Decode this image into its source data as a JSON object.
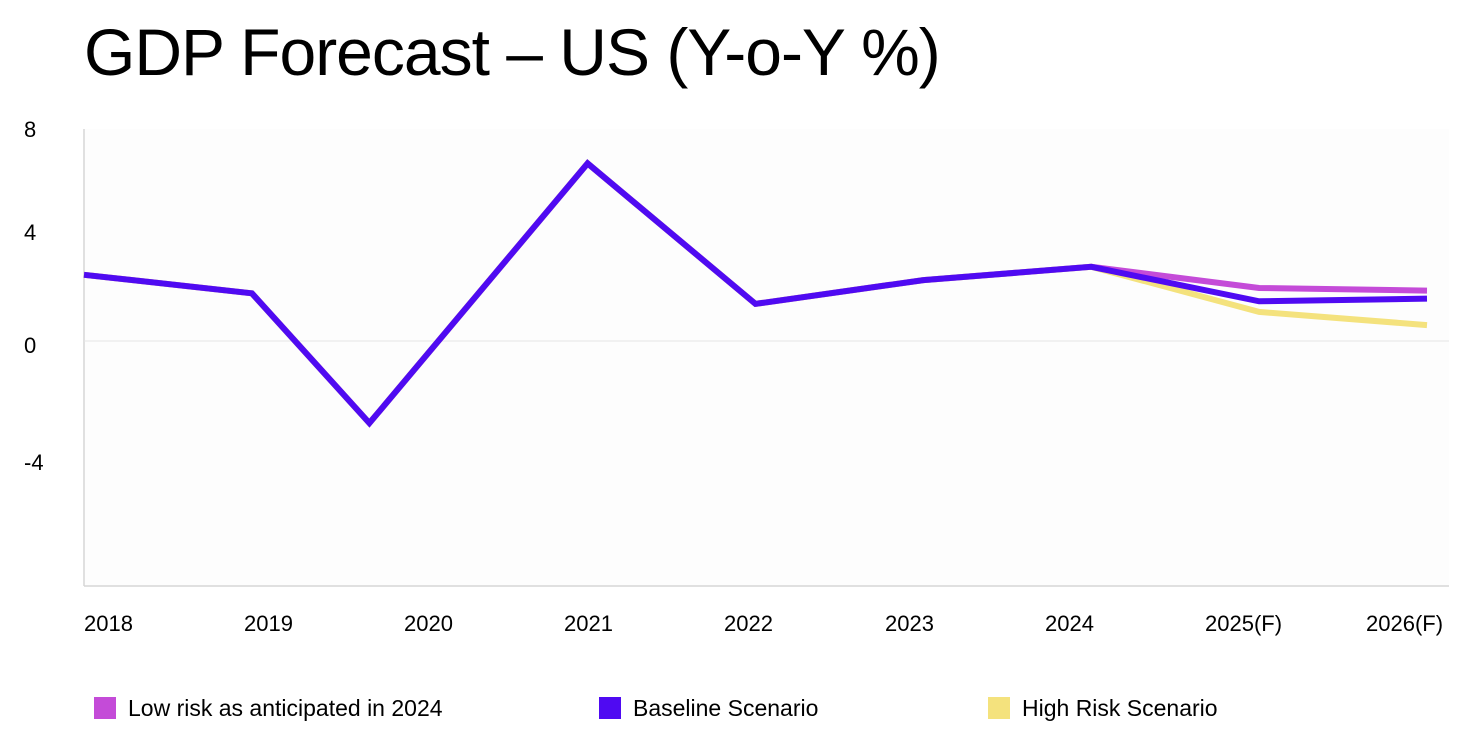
{
  "page": {
    "title": "GDP Forecast – US (Y-o-Y %)"
  },
  "colors": {
    "background": "#ffffff",
    "axis": "#d6d6d6",
    "zero_line": "#e5e5e5",
    "text": "#000000",
    "low_risk": "#c44bd8",
    "baseline": "#4f0af2",
    "high_risk": "#f4e27d"
  },
  "legend": {
    "items": [
      {
        "label": "Low risk as anticipated in 2024",
        "color": "#c44bd8"
      },
      {
        "label": "Baseline Scenario",
        "color": "#4f0af2"
      },
      {
        "label": "High Risk Scenario",
        "color": "#f4e27d"
      }
    ]
  },
  "chart_data": {
    "type": "line",
    "title": "GDP Forecast – US (Y-o-Y %)",
    "xlabel": "",
    "ylabel": "",
    "categories": [
      "2018",
      "2019",
      "2020",
      "2021",
      "2022",
      "2023",
      "2024",
      "2025(F)",
      "2026(F)"
    ],
    "y_ticks": [
      "8",
      "4",
      "0",
      "-4"
    ],
    "ylim": [
      -8.5,
      8
    ],
    "grid": false,
    "legend_position": "bottom",
    "series": [
      {
        "name": "Low risk as anticipated in 2024",
        "color": "#c44bd8",
        "x": [
          2018,
          2019,
          2019.7,
          2021,
          2022,
          2023,
          2024,
          2025,
          2026
        ],
        "values": [
          2.5,
          1.8,
          -3.1,
          6.7,
          1.4,
          2.3,
          2.8,
          2.0,
          1.9
        ]
      },
      {
        "name": "High Risk Scenario",
        "color": "#f4e27d",
        "x": [
          2018,
          2019,
          2019.7,
          2021,
          2022,
          2023,
          2024,
          2025,
          2026
        ],
        "values": [
          2.5,
          1.8,
          -3.1,
          6.7,
          1.4,
          2.3,
          2.8,
          1.1,
          0.6
        ]
      },
      {
        "name": "Baseline Scenario",
        "color": "#4f0af2",
        "x": [
          2018,
          2019,
          2019.7,
          2021,
          2022,
          2023,
          2024,
          2025,
          2026
        ],
        "values": [
          2.5,
          1.8,
          -3.1,
          6.7,
          1.4,
          2.3,
          2.8,
          1.5,
          1.6
        ]
      }
    ]
  }
}
